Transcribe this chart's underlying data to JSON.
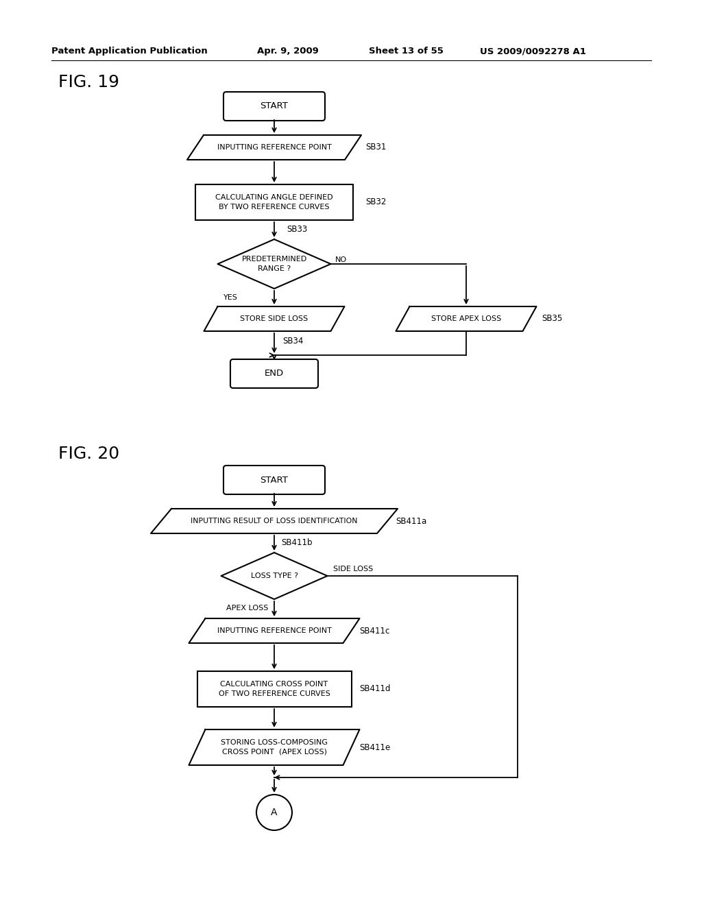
{
  "bg_color": "#ffffff",
  "header_text": "Patent Application Publication",
  "header_date": "Apr. 9, 2009",
  "header_sheet": "Sheet 13 of 55",
  "header_patent": "US 2009/0092278 A1",
  "fig19_label": "FIG. 19",
  "fig20_label": "FIG. 20"
}
